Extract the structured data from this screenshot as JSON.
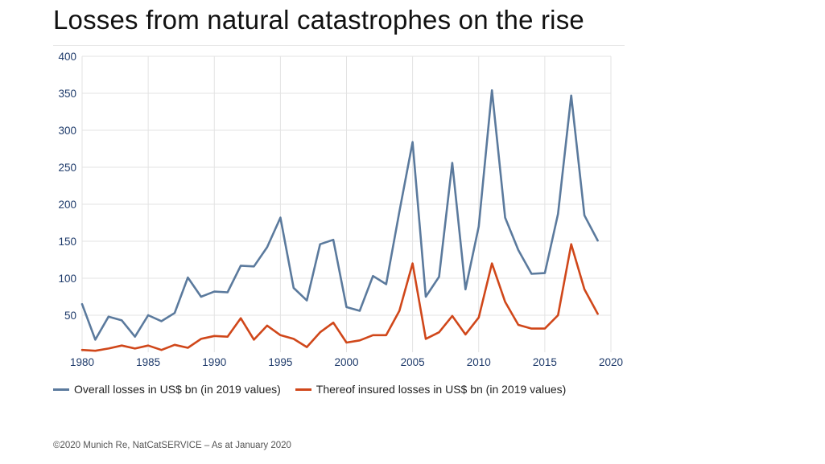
{
  "title": "Losses from natural catastrophes on the rise",
  "footer": "©2020 Munich Re, NatCatSERVICE – As at January 2020",
  "colors": {
    "overall": "#5b7a9d",
    "insured": "#d0471a",
    "axis_text": "#1f3b6b",
    "grid": "#e3e3e3"
  },
  "chart_data": {
    "type": "line",
    "title": "Losses from natural catastrophes on the rise",
    "xlabel": "",
    "ylabel": "",
    "xlim": [
      1980,
      2020
    ],
    "ylim": [
      0,
      400
    ],
    "x_ticks": [
      1980,
      1985,
      1990,
      1995,
      2000,
      2005,
      2010,
      2015,
      2020
    ],
    "y_ticks": [
      50,
      100,
      150,
      200,
      250,
      300,
      350,
      400
    ],
    "grid": true,
    "legend_position": "bottom",
    "x": [
      1980,
      1981,
      1982,
      1983,
      1984,
      1985,
      1986,
      1987,
      1988,
      1989,
      1990,
      1991,
      1992,
      1993,
      1994,
      1995,
      1996,
      1997,
      1998,
      1999,
      2000,
      2001,
      2002,
      2003,
      2004,
      2005,
      2006,
      2007,
      2008,
      2009,
      2010,
      2011,
      2012,
      2013,
      2014,
      2015,
      2016,
      2017,
      2018,
      2019
    ],
    "series": [
      {
        "name": "Overall losses in US$ bn (in 2019 values)",
        "color": "#5b7a9d",
        "values": [
          65,
          17,
          48,
          43,
          21,
          50,
          42,
          53,
          101,
          75,
          82,
          81,
          117,
          116,
          142,
          182,
          87,
          70,
          146,
          152,
          61,
          56,
          103,
          92,
          190,
          284,
          75,
          102,
          256,
          85,
          170,
          354,
          182,
          138,
          106,
          107,
          187,
          347,
          185,
          151
        ]
      },
      {
        "name": "Thereof insured losses in US$ bn (in 2019 values)",
        "color": "#d0471a",
        "values": [
          3,
          2,
          5,
          9,
          5,
          9,
          3,
          10,
          6,
          18,
          22,
          21,
          46,
          17,
          36,
          23,
          18,
          7,
          27,
          40,
          13,
          16,
          23,
          23,
          56,
          120,
          18,
          27,
          49,
          24,
          47,
          120,
          68,
          37,
          32,
          32,
          50,
          146,
          85,
          52
        ]
      }
    ]
  }
}
